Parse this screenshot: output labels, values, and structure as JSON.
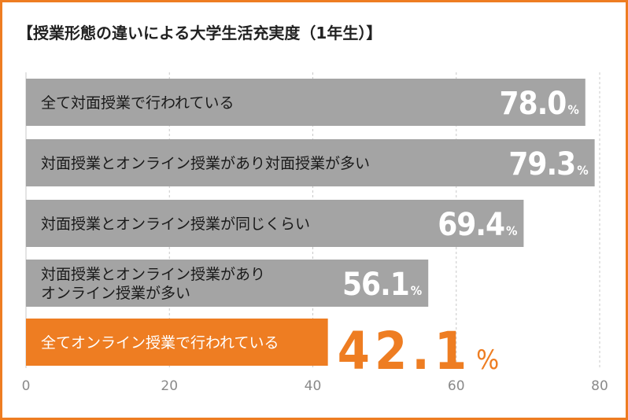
{
  "title": "【授業形態の違いによる大学生活充実度（1年生）】",
  "colors": {
    "border": "#ee7d22",
    "bar": "#a4a4a4",
    "highlight": "#ee7d22",
    "grid": "#c8c8c8",
    "axis_text": "#8a8a8a"
  },
  "chart_data": {
    "type": "bar",
    "orientation": "horizontal",
    "unit": "%",
    "categories": [
      "全て対面授業で行われている",
      "対面授業とオンライン授業があり対面授業が多い",
      "対面授業とオンライン授業が同じくらい",
      "対面授業とオンライン授業がありオンライン授業が多い",
      "全てオンライン授業で行われている"
    ],
    "category_lines": [
      [
        "全て対面授業で行われている"
      ],
      [
        "対面授業とオンライン授業があり対面授業が多い"
      ],
      [
        "対面授業とオンライン授業が同じくらい"
      ],
      [
        "対面授業とオンライン授業があり",
        "オンライン授業が多い"
      ],
      [
        "全てオンライン授業で行われている"
      ]
    ],
    "values": [
      78.0,
      79.3,
      69.4,
      56.1,
      42.1
    ],
    "value_labels": [
      "78.0",
      "79.3",
      "69.4",
      "56.1",
      "42.1"
    ],
    "highlight_index": 4,
    "xlim": [
      0,
      80
    ],
    "xticks": [
      "0",
      "20",
      "40",
      "60",
      "80"
    ],
    "grid": "vertical dashed"
  }
}
